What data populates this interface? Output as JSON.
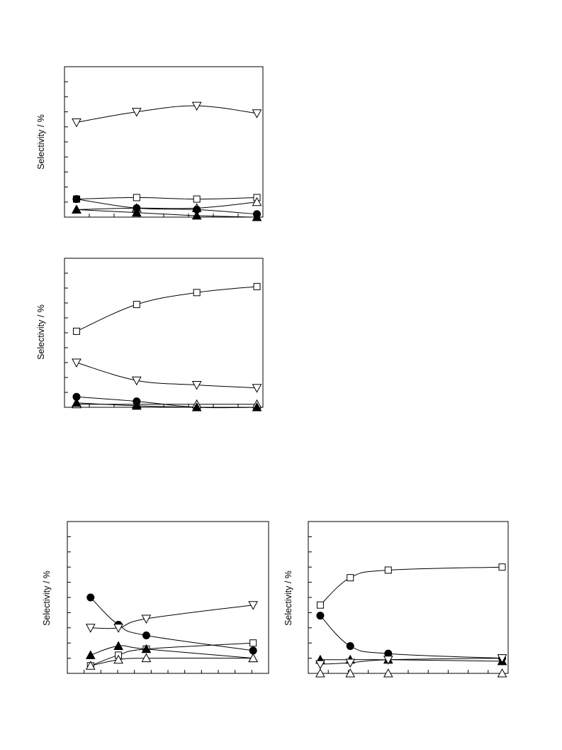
{
  "chart_data": [
    {
      "type": "line",
      "ylabel": "Selectivity / %",
      "xlim": [
        0,
        3.3
      ],
      "ylim": [
        0,
        100
      ],
      "x": [
        0.2,
        1.2,
        2.2,
        3.2
      ],
      "series": [
        {
          "marker": "triangle-down-open",
          "values": [
            63,
            70,
            74,
            69
          ]
        },
        {
          "marker": "square-open",
          "values": [
            12,
            13,
            12,
            13
          ]
        },
        {
          "marker": "triangle-up-open",
          "values": [
            5,
            6,
            6,
            10
          ]
        },
        {
          "marker": "circle-filled",
          "values": [
            12,
            6,
            5,
            2
          ]
        },
        {
          "marker": "triangle-up-filled",
          "values": [
            5,
            3,
            1,
            0
          ]
        }
      ]
    },
    {
      "type": "line",
      "ylabel": "Selectivity / %",
      "xlim": [
        0,
        3.3
      ],
      "ylim": [
        0,
        100
      ],
      "x": [
        0.2,
        1.2,
        2.2,
        3.2
      ],
      "series": [
        {
          "marker": "square-open",
          "values": [
            51,
            69,
            77,
            81
          ]
        },
        {
          "marker": "triangle-down-open",
          "values": [
            30,
            18,
            15,
            13
          ]
        },
        {
          "marker": "circle-filled",
          "values": [
            7,
            4,
            0,
            0
          ]
        },
        {
          "marker": "triangle-up-open",
          "values": [
            2,
            2,
            2,
            2
          ]
        },
        {
          "marker": "triangle-up-filled",
          "values": [
            3,
            1,
            0,
            0
          ]
        }
      ]
    },
    {
      "type": "line",
      "ylabel": "Selectivity / %",
      "xlim": [
        0,
        13
      ],
      "ylim": [
        0,
        100
      ],
      "x": [
        1.5,
        3.3,
        5.1,
        12
      ],
      "series": [
        {
          "marker": "circle-filled",
          "values": [
            50,
            32,
            25,
            15
          ]
        },
        {
          "marker": "triangle-down-open",
          "values": [
            30,
            30,
            36,
            45
          ]
        },
        {
          "marker": "square-open",
          "values": [
            5,
            12,
            16,
            20
          ]
        },
        {
          "marker": "triangle-up-filled",
          "values": [
            12,
            18,
            16,
            10
          ]
        },
        {
          "marker": "triangle-up-open",
          "values": [
            5,
            9,
            10,
            10
          ]
        }
      ]
    },
    {
      "type": "line",
      "ylabel": "Selectivity / %",
      "xlim": [
        0,
        10
      ],
      "ylim": [
        0,
        100
      ],
      "x": [
        0.6,
        2.1,
        4.0,
        9.7
      ],
      "series": [
        {
          "marker": "square-open",
          "values": [
            45,
            63,
            68,
            70
          ]
        },
        {
          "marker": "circle-filled",
          "values": [
            38,
            18,
            13,
            10
          ]
        },
        {
          "marker": "triangle-up-filled",
          "values": [
            9,
            9,
            9,
            8
          ]
        },
        {
          "marker": "triangle-down-open",
          "values": [
            6,
            7,
            9,
            10
          ]
        },
        {
          "marker": "triangle-up-open",
          "values": [
            0,
            0,
            0,
            0
          ]
        }
      ]
    }
  ]
}
